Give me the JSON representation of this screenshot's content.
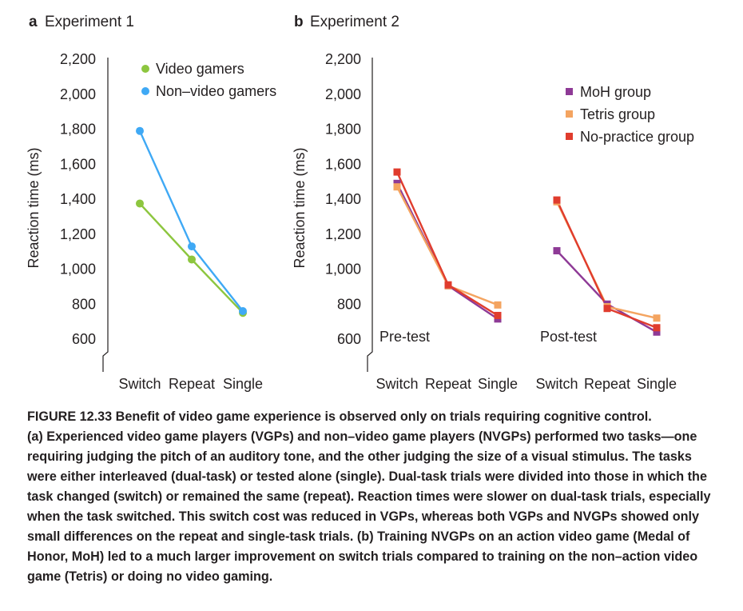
{
  "chart_data": [
    {
      "type": "line",
      "panel_letter": "a",
      "title": "Experiment 1",
      "ylabel": "Reaction time (ms)",
      "xlabel": "",
      "ylim": [
        600,
        2200
      ],
      "yticks": [
        "2,200",
        "2,000",
        "1,800",
        "1,600",
        "1,400",
        "1,200",
        "1,000",
        "800",
        "600"
      ],
      "categories": [
        "Switch",
        "Repeat",
        "Single"
      ],
      "legend_position": "top-right",
      "series": [
        {
          "name": "Video gamers",
          "color": "#8dc63f",
          "marker": "circle",
          "values": [
            1375,
            1055,
            750
          ]
        },
        {
          "name": "Non–video gamers",
          "color": "#3fa9f5",
          "marker": "circle",
          "values": [
            1790,
            1130,
            760
          ]
        }
      ]
    },
    {
      "type": "line",
      "panel_letter": "b",
      "title": "Experiment 2",
      "ylabel": "Reaction time (ms)",
      "xlabel": "",
      "ylim": [
        600,
        2200
      ],
      "yticks": [
        "2,200",
        "2,000",
        "1,800",
        "1,600",
        "1,400",
        "1,200",
        "1,000",
        "800",
        "600"
      ],
      "groups": [
        {
          "label": "Pre-test",
          "categories": [
            "Switch",
            "Repeat",
            "Single"
          ]
        },
        {
          "label": "Post-test",
          "categories": [
            "Switch",
            "Repeat",
            "Single"
          ]
        }
      ],
      "legend_position": "top-right",
      "series": [
        {
          "name": "MoH group",
          "color": "#8e3a96",
          "marker": "square",
          "pre": [
            1490,
            905,
            715
          ],
          "post": [
            1105,
            800,
            640
          ]
        },
        {
          "name": "Tetris group",
          "color": "#f4a460",
          "marker": "square",
          "pre": [
            1470,
            905,
            795
          ],
          "post": [
            1385,
            785,
            720
          ]
        },
        {
          "name": "No-practice group",
          "color": "#e03c2d",
          "marker": "square",
          "pre": [
            1555,
            910,
            735
          ],
          "post": [
            1395,
            775,
            665
          ]
        }
      ]
    }
  ],
  "caption": {
    "figure_number": "FIGURE 12.33",
    "title": "Benefit of video game experience is observed only on trials requiring cognitive control.",
    "part_a_label": "(a)",
    "part_a_text": "Experienced video game players (VGPs) and non–video game players (NVGPs) performed two tasks—one requiring judging the pitch of an auditory tone, and the other judging the size of a visual stimulus. The tasks were either interleaved (dual-task) or tested alone (single). Dual-task trials were divided into those in which the task changed (switch) or remained the same (repeat). Reaction times were slower on dual-task trials, especially when the task switched. This switch cost was reduced in VGPs, whereas both VGPs and NVGPs showed only small differences on the repeat and single-task trials.",
    "part_b_label": "(b)",
    "part_b_text": "Training NVGPs on an action video game (Medal of Honor, MoH) led to a much larger improvement on switch trials compared to training on the non–action video game (Tetris) or doing no video gaming."
  }
}
